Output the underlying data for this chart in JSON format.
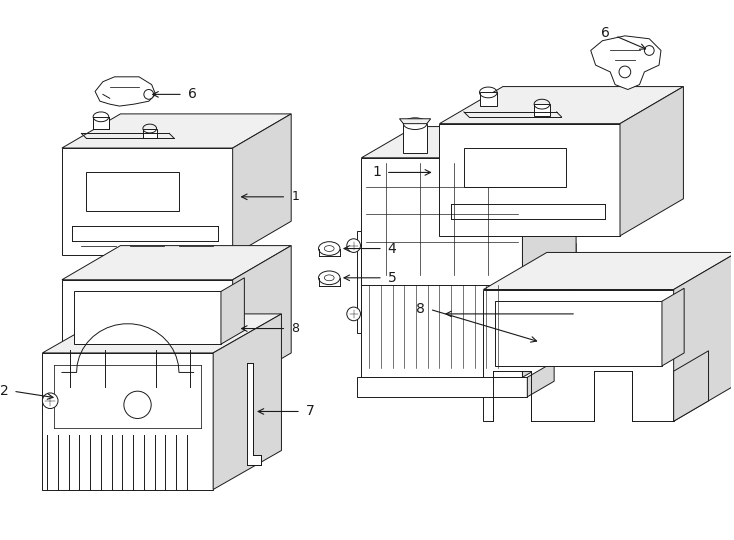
{
  "background_color": "#ffffff",
  "line_color": "#1a1a1a",
  "figsize": [
    7.34,
    5.4
  ],
  "dpi": 100,
  "lw": 0.7,
  "gray_face": "#f0f0f0",
  "dark_face": "#d8d8d8"
}
